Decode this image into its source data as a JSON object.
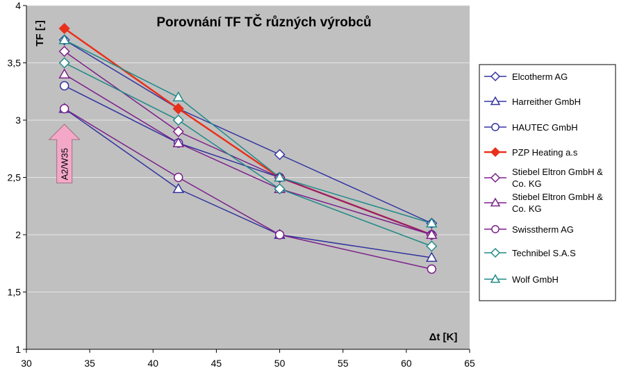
{
  "chart_data": {
    "type": "line",
    "title": "Porovnání TF TČ různých výrobců",
    "ylabel": "TF [-]",
    "xlabel": "Δt [K]",
    "xlim": [
      30,
      65
    ],
    "ylim": [
      1,
      4
    ],
    "xticks": [
      30,
      35,
      40,
      45,
      50,
      55,
      60,
      65
    ],
    "yticks": [
      1,
      1.5,
      2,
      2.5,
      3,
      3.5,
      4
    ],
    "xtick_labels": [
      "30",
      "35",
      "40",
      "45",
      "50",
      "55",
      "60",
      "65"
    ],
    "ytick_labels": [
      "1",
      "1,5",
      "2",
      "2,5",
      "3",
      "3,5",
      "4"
    ],
    "grid": "horizontal",
    "legend_position": "right",
    "x": [
      33,
      42,
      50,
      62
    ],
    "series": [
      {
        "name": "Elcotherm AG",
        "values": [
          3.7,
          3.1,
          2.7,
          2.1
        ],
        "color": "#3333a0",
        "marker": "diamond",
        "fill": "#ffffff"
      },
      {
        "name": "Harreither GmbH",
        "values": [
          3.1,
          2.4,
          2.0,
          1.8
        ],
        "color": "#3333a0",
        "marker": "triangle",
        "fill": "#ffffff"
      },
      {
        "name": "HAUTEC GmbH",
        "values": [
          3.3,
          2.8,
          2.5,
          2.0
        ],
        "color": "#3333a0",
        "marker": "circle",
        "fill": "#ffffff"
      },
      {
        "name": "PZP Heating a.s",
        "values": [
          3.8,
          3.1,
          2.5,
          2.0
        ],
        "color": "#e8301a",
        "marker": "diamond",
        "fill": "#e8301a"
      },
      {
        "name": "Stiebel Eltron GmbH & Co. KG",
        "values": [
          3.6,
          2.9,
          2.5,
          2.0
        ],
        "color": "#7b1f8a",
        "marker": "diamond",
        "fill": "#ffffff"
      },
      {
        "name": "Stiebel Eltron GmbH & Co. KG",
        "values": [
          3.4,
          2.8,
          2.4,
          2.0
        ],
        "color": "#7b1f8a",
        "marker": "triangle",
        "fill": "#ffffff"
      },
      {
        "name": "Swisstherm AG",
        "values": [
          3.1,
          2.5,
          2.0,
          1.7
        ],
        "color": "#7b1f8a",
        "marker": "circle",
        "fill": "#ffffff"
      },
      {
        "name": "Technibel S.A.S",
        "values": [
          3.5,
          3.0,
          2.4,
          1.9
        ],
        "color": "#1f8a87",
        "marker": "diamond",
        "fill": "#ffffff"
      },
      {
        "name": "Wolf GmbH",
        "values": [
          3.7,
          3.2,
          2.5,
          2.1
        ],
        "color": "#1f8a87",
        "marker": "triangle",
        "fill": "#ffffff"
      }
    ],
    "annotations": [
      {
        "text": "A2/W35",
        "x": 33,
        "y_from": 2.5,
        "y_to": 3.0,
        "color": "#f4a8c8"
      }
    ]
  }
}
